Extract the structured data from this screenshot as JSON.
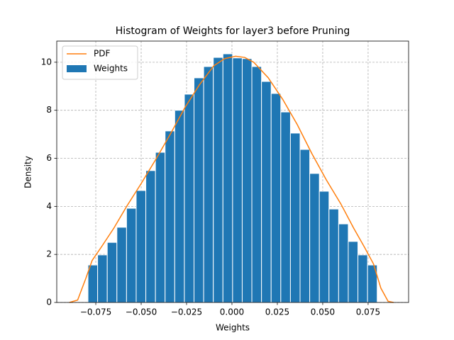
{
  "chart_data": {
    "type": "histogram",
    "title": "Histogram of Weights for layer3 before Pruning",
    "x_label": "Weights",
    "y_label": "Density",
    "xlim": [
      -0.0965,
      0.0973
    ],
    "ylim": [
      0,
      10.88
    ],
    "xticks": [
      {
        "value": -0.075,
        "label": "−0.075"
      },
      {
        "value": -0.05,
        "label": "−0.050"
      },
      {
        "value": -0.025,
        "label": "−0.025"
      },
      {
        "value": 0,
        "label": "0.000"
      },
      0.025,
      {
        "value": 0.05,
        "label": "0.050"
      },
      0.075
    ],
    "yticks": [
      0,
      2,
      4,
      6,
      8,
      10
    ],
    "grid": true,
    "legend": "upper left",
    "bins": [
      -0.0793,
      -0.07399,
      -0.06868,
      -0.06337,
      -0.05806,
      -0.05275,
      -0.04744,
      -0.04213,
      -0.03682,
      -0.03151,
      -0.0262,
      -0.02089,
      -0.01558,
      -0.01027,
      -0.00496,
      0.00035,
      0.00566,
      0.01097,
      0.01628,
      0.02159,
      0.0269,
      0.03221,
      0.03752,
      0.04283,
      0.04814,
      0.05345,
      0.05876,
      0.06407,
      0.06938,
      0.07469,
      0.08
    ],
    "series": [
      {
        "name": "PDF",
        "type": "line",
        "color": "#ff7f0e",
        "x": [
          -0.0895,
          -0.085,
          -0.0805,
          -0.077,
          -0.072,
          -0.065,
          -0.058,
          -0.05,
          -0.042,
          -0.034,
          -0.026,
          -0.018,
          -0.01,
          -0.004,
          0.002,
          0.007,
          0.012,
          0.02,
          0.028,
          0.036,
          0.044,
          0.052,
          0.06,
          0.067,
          0.073,
          0.078,
          0.082,
          0.086,
          0.089
        ],
        "values": [
          0,
          0.1,
          1.0,
          1.75,
          2.3,
          3.1,
          4.0,
          4.95,
          5.95,
          7.0,
          8.1,
          9.05,
          9.85,
          10.15,
          10.25,
          10.2,
          10.0,
          9.35,
          8.45,
          7.4,
          6.2,
          5.1,
          4.1,
          3.1,
          2.3,
          1.6,
          0.6,
          0.05,
          0
        ]
      },
      {
        "name": "Weights",
        "type": "histogram",
        "color": "#1f77b4",
        "values": [
          1.56,
          1.98,
          2.5,
          3.13,
          3.92,
          4.66,
          5.49,
          6.25,
          7.14,
          8.0,
          8.67,
          9.35,
          9.82,
          10.2,
          10.35,
          10.18,
          10.15,
          9.82,
          9.2,
          8.7,
          7.93,
          7.05,
          6.37,
          5.37,
          4.63,
          3.89,
          3.27,
          2.54,
          1.98,
          1.56
        ]
      }
    ]
  }
}
